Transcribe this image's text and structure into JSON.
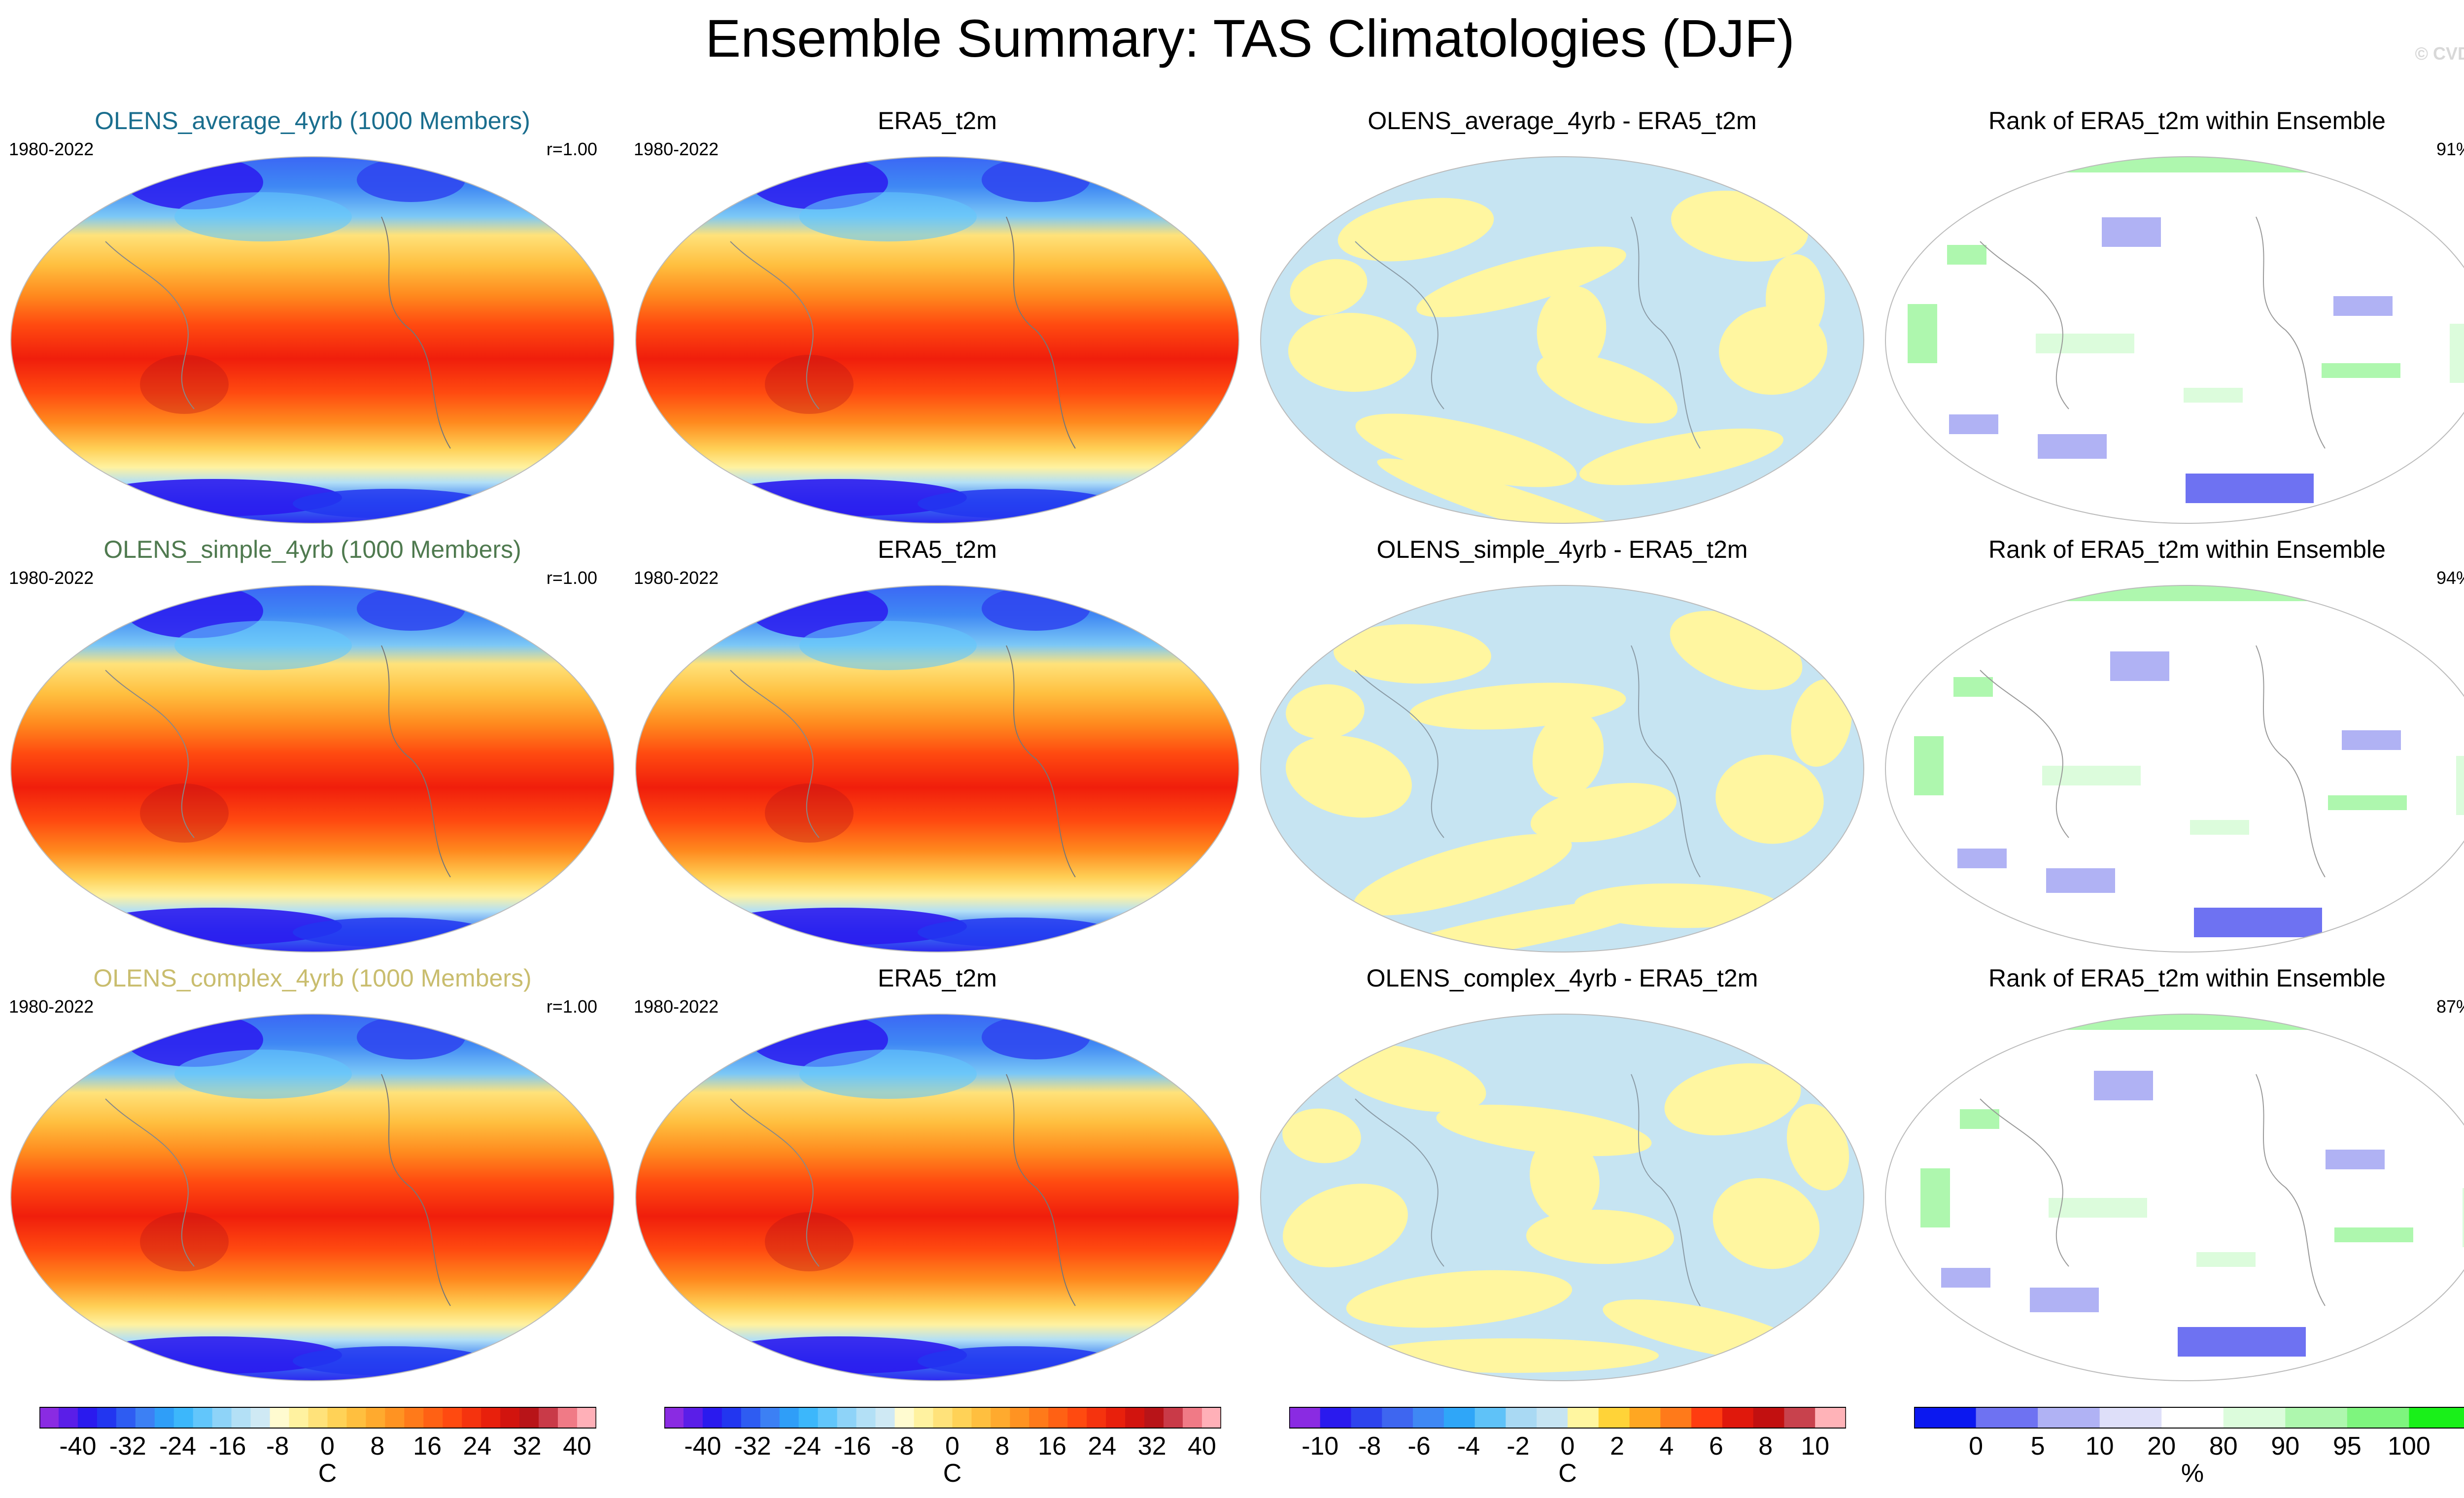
{
  "title": "Ensemble Summary: TAS Climatologies (DJF)",
  "copyright": "© CVDP",
  "rows": [
    {
      "model": {
        "title": "OLENS_average_4yrb (1000 Members)",
        "color": "#1a6e8e",
        "years": "1980-2022",
        "r": "r=1.00"
      },
      "obs": {
        "title": "ERA5_t2m",
        "years": "1980-2022"
      },
      "diff": {
        "title": "OLENS_average_4yrb - ERA5_t2m"
      },
      "rank": {
        "title": "Rank of ERA5_t2m within Ensemble",
        "pct": "91%"
      }
    },
    {
      "model": {
        "title": "OLENS_simple_4yrb (1000 Members)",
        "color": "#4f7a4f",
        "years": "1980-2022",
        "r": "r=1.00"
      },
      "obs": {
        "title": "ERA5_t2m",
        "years": "1980-2022"
      },
      "diff": {
        "title": "OLENS_simple_4yrb - ERA5_t2m"
      },
      "rank": {
        "title": "Rank of ERA5_t2m within Ensemble",
        "pct": "94%"
      }
    },
    {
      "model": {
        "title": "OLENS_complex_4yrb (1000 Members)",
        "color": "#c9bd6e",
        "years": "1980-2022",
        "r": "r=1.00"
      },
      "obs": {
        "title": "ERA5_t2m",
        "years": "1980-2022"
      },
      "diff": {
        "title": "OLENS_complex_4yrb - ERA5_t2m"
      },
      "rank": {
        "title": "Rank of ERA5_t2m within Ensemble",
        "pct": "87%"
      }
    }
  ],
  "colorbars": {
    "temp": {
      "labels": [
        "-40",
        "-32",
        "-24",
        "-16",
        "-8",
        "0",
        "8",
        "16",
        "24",
        "32",
        "40"
      ],
      "unit": "C",
      "colors": [
        "#8a2be2",
        "#5a1ee8",
        "#2a1aee",
        "#2236f0",
        "#2e5cf2",
        "#3c80f4",
        "#2f9ef8",
        "#3cb7fb",
        "#62c6fb",
        "#8ed3f8",
        "#b3e0f6",
        "#cfe9f4",
        "#fffbd0",
        "#fff2a0",
        "#ffe27a",
        "#ffd257",
        "#ffbf3f",
        "#ffaa2e",
        "#ff9322",
        "#ff7a1a",
        "#ff6114",
        "#ff4a10",
        "#f5330e",
        "#e8200c",
        "#d2140e",
        "#b81418",
        "#c93a48",
        "#f07a86",
        "#ffb0b8"
      ]
    },
    "diff": {
      "labels": [
        "-10",
        "-8",
        "-6",
        "-4",
        "-2",
        "0",
        "2",
        "4",
        "6",
        "8",
        "10"
      ],
      "unit": "C",
      "colors": [
        "#8a2be2",
        "#2a1aee",
        "#2e44ee",
        "#3e66f0",
        "#3f88f4",
        "#2fa6f8",
        "#5fc2f8",
        "#a9d9f3",
        "#c6e4f2",
        "#fff6a0",
        "#ffd338",
        "#ffa722",
        "#ff7a1a",
        "#ff3c10",
        "#e0180c",
        "#c21010",
        "#c8424d",
        "#ffb3b8"
      ]
    },
    "rank": {
      "labels": [
        "0",
        "5",
        "10",
        "20",
        "80",
        "90",
        "95",
        "100"
      ],
      "unit": "%",
      "colors": [
        "#0b18f0",
        "#6e72f2",
        "#b0b2f4",
        "#dedff9",
        "#ffffff",
        "#dcfcdc",
        "#aef7ae",
        "#7ef57e",
        "#19f019"
      ]
    }
  }
}
